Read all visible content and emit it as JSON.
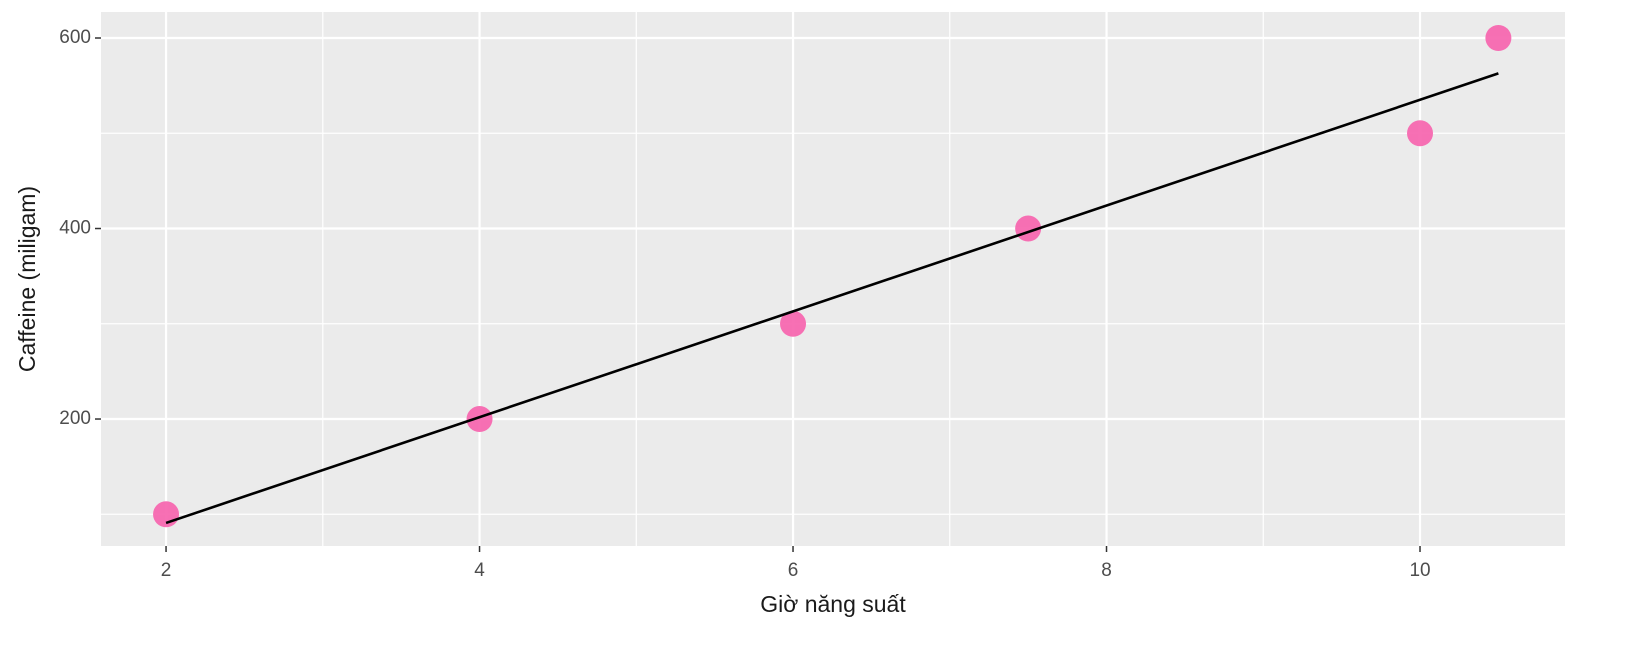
{
  "chart_data": {
    "type": "scatter",
    "x_label": "Giờ năng suất",
    "y_label": "Caffeine (miligam)",
    "x": [
      2,
      4,
      6,
      7.5,
      10,
      10.5
    ],
    "values": [
      100,
      200,
      300,
      400,
      500,
      600
    ],
    "color": "#f768b0",
    "trend_line": {
      "x": [
        2,
        10.5
      ],
      "values": [
        90.9,
        562.9
      ],
      "color": "#000000"
    },
    "xlim": [
      1.585,
      10.925
    ],
    "ylim": [
      66.7,
      627.3
    ],
    "xticks": [
      2,
      4,
      6,
      8,
      10
    ],
    "yticks": [
      200,
      400,
      600
    ],
    "xminor": [
      3,
      5,
      7,
      9
    ],
    "yminor": [
      100,
      300,
      500
    ],
    "grid": true
  }
}
